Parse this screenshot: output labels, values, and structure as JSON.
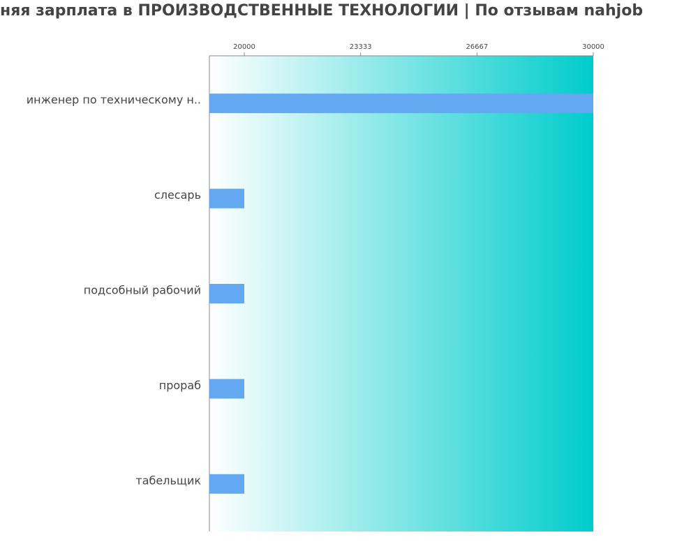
{
  "chart_data": {
    "type": "bar",
    "orientation": "horizontal",
    "title": "няя зарплата в ПРОИЗВОДСТВЕННЫЕ ТЕХНОЛОГИИ | По отзывам nahjob",
    "categories": [
      "инженер по техническому н..",
      "слесарь",
      "подсобный рабочий",
      "прораб",
      "табельщик"
    ],
    "values": [
      30000,
      20000,
      20000,
      20000,
      20000
    ],
    "color": "#63a8f0",
    "xlim": [
      19000,
      30000
    ],
    "xticks": [
      20000,
      23333,
      26667,
      30000
    ],
    "background_gradient": [
      "#ffffff",
      "#00cccc"
    ]
  }
}
